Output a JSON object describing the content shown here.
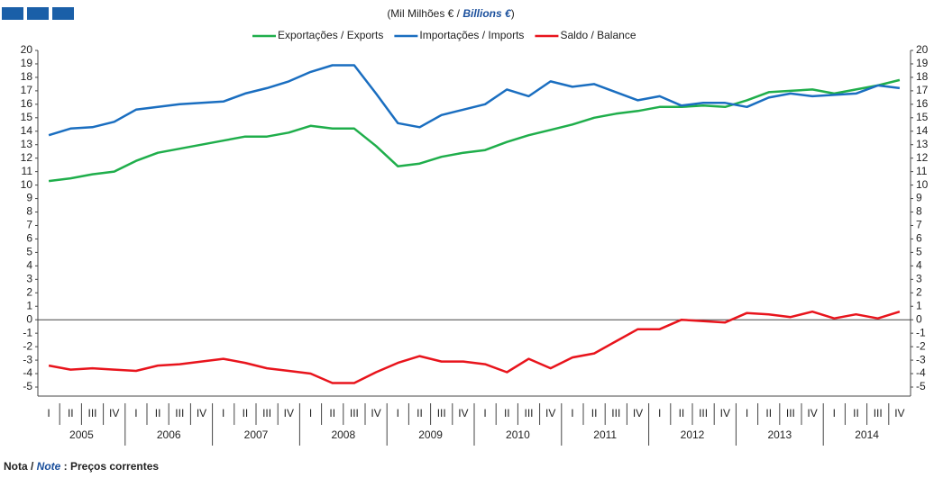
{
  "chart_data": {
    "type": "line",
    "title_pt": "(Mil Milhões € / ",
    "title_en": "Billions €",
    "title_end": ")",
    "note_pt": "Nota / ",
    "note_en": "Note",
    "note_text": " : Preços correntes",
    "categories": [
      "I",
      "II",
      "III",
      "IV",
      "I",
      "II",
      "III",
      "IV",
      "I",
      "II",
      "III",
      "IV",
      "I",
      "II",
      "III",
      "IV",
      "I",
      "II",
      "III",
      "IV",
      "I",
      "II",
      "III",
      "IV",
      "I",
      "II",
      "III",
      "IV",
      "I",
      "II",
      "III",
      "IV",
      "I",
      "II",
      "III",
      "IV",
      "I",
      "II",
      "III",
      "IV"
    ],
    "years": [
      "2005",
      "2006",
      "2007",
      "2008",
      "2009",
      "2010",
      "2011",
      "2012",
      "2013",
      "2014"
    ],
    "series": [
      {
        "name": "Exportações / Exports",
        "color": "#1fae4b",
        "values": [
          10.3,
          10.5,
          10.8,
          11.0,
          11.8,
          12.4,
          12.7,
          13.0,
          13.3,
          13.6,
          13.6,
          13.9,
          14.4,
          14.2,
          14.2,
          12.9,
          11.4,
          11.6,
          12.1,
          12.4,
          12.6,
          13.2,
          13.7,
          14.1,
          14.5,
          15.0,
          15.3,
          15.5,
          15.8,
          15.8,
          15.9,
          15.8,
          16.3,
          16.9,
          17.0,
          17.1,
          16.8,
          17.1,
          17.4,
          17.8
        ]
      },
      {
        "name": "Importações / Imports",
        "color": "#1a6ec0",
        "values": [
          13.7,
          14.2,
          14.3,
          14.7,
          15.6,
          15.8,
          16.0,
          16.1,
          16.2,
          16.8,
          17.2,
          17.7,
          18.4,
          18.9,
          18.9,
          16.8,
          14.6,
          14.3,
          15.2,
          15.6,
          16.0,
          17.1,
          16.6,
          17.7,
          17.3,
          17.5,
          16.9,
          16.3,
          16.6,
          15.9,
          16.1,
          16.1,
          15.8,
          16.5,
          16.8,
          16.6,
          16.7,
          16.8,
          17.4,
          17.2
        ]
      },
      {
        "name": "Saldo / Balance",
        "color": "#e8141c",
        "values": [
          -3.4,
          -3.7,
          -3.6,
          -3.7,
          -3.8,
          -3.4,
          -3.3,
          -3.1,
          -2.9,
          -3.2,
          -3.6,
          -3.8,
          -4.0,
          -4.7,
          -4.7,
          -3.9,
          -3.2,
          -2.7,
          -3.1,
          -3.1,
          -3.3,
          -3.9,
          -2.9,
          -3.6,
          -2.8,
          -2.5,
          -1.6,
          -0.7,
          -0.7,
          0.0,
          -0.1,
          -0.2,
          0.5,
          0.4,
          0.2,
          0.6,
          0.1,
          0.4,
          0.1,
          0.6
        ]
      }
    ],
    "ylim": [
      -5,
      20
    ],
    "yticks": [
      -5,
      -4,
      -3,
      -2,
      -1,
      0,
      1,
      2,
      3,
      4,
      5,
      6,
      7,
      8,
      9,
      10,
      11,
      12,
      13,
      14,
      15,
      16,
      17,
      18,
      19,
      20
    ],
    "grid": false
  }
}
